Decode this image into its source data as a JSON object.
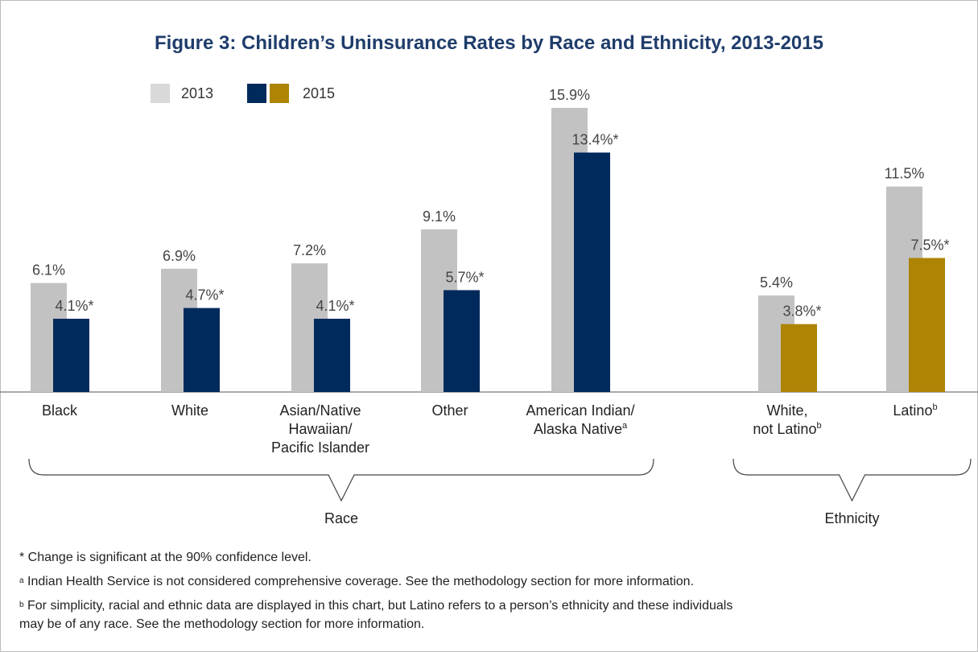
{
  "chart_data": {
    "type": "bar",
    "title": "Figure 3: Children’s Uninsurance Rates by Race and Ethnicity, 2013-2015",
    "legend": [
      {
        "label": "2013",
        "colors": [
          "#d9d9d9"
        ]
      },
      {
        "label": "2015",
        "colors": [
          "#002a5c",
          "#ae8405"
        ]
      }
    ],
    "colors": {
      "bar_2013": "#c2c2c2",
      "race_2015": "#002a5c",
      "ethnicity_2015": "#ae8405",
      "value_text": "#444444"
    },
    "categories": [
      {
        "lines": [
          "Black"
        ],
        "group": "race",
        "y2013": 6.1,
        "y2015": 4.1,
        "label2013": "6.1%",
        "label2015": "4.1%*"
      },
      {
        "lines": [
          "White"
        ],
        "group": "race",
        "y2013": 6.9,
        "y2015": 4.7,
        "label2013": "6.9%",
        "label2015": "4.7%*"
      },
      {
        "lines": [
          "Asian/Native",
          "Hawaiian/",
          "Pacific Islander"
        ],
        "group": "race",
        "y2013": 7.2,
        "y2015": 4.1,
        "label2013": "7.2%",
        "label2015": "4.1%*"
      },
      {
        "lines": [
          "Other"
        ],
        "group": "race",
        "y2013": 9.1,
        "y2015": 5.7,
        "label2013": "9.1%",
        "label2015": "5.7%*"
      },
      {
        "lines": [
          "American Indian/",
          "Alaska Native"
        ],
        "sup": "a",
        "group": "race",
        "y2013": 15.9,
        "y2015": 13.4,
        "label2013": "15.9%",
        "label2015": "13.4%*"
      },
      {
        "lines": [
          "White,",
          "not Latino"
        ],
        "sup": "b",
        "group": "ethnicity",
        "y2013": 5.4,
        "y2015": 3.8,
        "label2013": "5.4%",
        "label2015": "3.8%*"
      },
      {
        "lines": [
          "Latino"
        ],
        "sup": "b",
        "group": "ethnicity",
        "y2013": 11.5,
        "y2015": 7.5,
        "label2013": "11.5%",
        "label2015": "7.5%*"
      }
    ],
    "groups": [
      {
        "id": "race",
        "label": "Race"
      },
      {
        "id": "ethnicity",
        "label": "Ethnicity"
      }
    ],
    "ylim": [
      0,
      16
    ]
  },
  "footnotes": {
    "sig": "* Change is significant at the 90% confidence level.",
    "a_mark": "a",
    "a_text": " Indian Health Service is not considered comprehensive coverage. See the methodology section for more information.",
    "b_mark": "b",
    "b_text_line1": " For simplicity, racial and ethnic data are displayed in this chart, but Latino refers to a person’s ethnicity and these individuals",
    "b_text_line2": "may be of any race. See the methodology section for more information."
  }
}
